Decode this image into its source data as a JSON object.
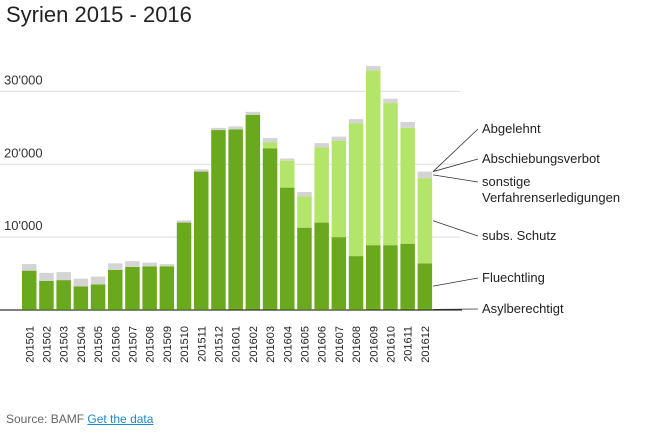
{
  "title": "Syrien 2015 - 2016",
  "source": {
    "label": "Source: BAMF",
    "link": "Get the data"
  },
  "chart_data": {
    "type": "bar",
    "stacked": true,
    "title": "Syrien 2015 - 2016",
    "xlabel": "",
    "ylabel": "",
    "ylim": [
      0,
      35000
    ],
    "yticks": [
      {
        "value": 10000,
        "label": "10'000"
      },
      {
        "value": 20000,
        "label": "20'000"
      },
      {
        "value": 30000,
        "label": "30'000"
      }
    ],
    "categories": [
      "201501",
      "201502",
      "201503",
      "201504",
      "201505",
      "201506",
      "201507",
      "201508",
      "201509",
      "201510",
      "201511",
      "201512",
      "201601",
      "201602",
      "201603",
      "201604",
      "201605",
      "201606",
      "201607",
      "201608",
      "201609",
      "201610",
      "201611",
      "201612"
    ],
    "series": [
      {
        "name": "Asylberechtigt",
        "color": "#3f6b0e",
        "values": [
          60,
          50,
          50,
          40,
          40,
          50,
          60,
          60,
          60,
          90,
          100,
          120,
          150,
          150,
          150,
          120,
          100,
          100,
          100,
          100,
          150,
          150,
          150,
          150
        ]
      },
      {
        "name": "Fluechtling",
        "color": "#6aa81e",
        "values": [
          5340,
          3950,
          4050,
          3210,
          3460,
          5450,
          5840,
          5940,
          5940,
          11910,
          18900,
          24580,
          24650,
          26650,
          22050,
          16680,
          11200,
          11900,
          9900,
          7300,
          8750,
          8750,
          8950,
          6250
        ]
      },
      {
        "name": "subs. Schutz",
        "color": "#b4e56b",
        "values": [
          0,
          0,
          0,
          0,
          0,
          0,
          0,
          0,
          0,
          0,
          0,
          0,
          0,
          0,
          800,
          3700,
          4300,
          10300,
          13200,
          18200,
          24000,
          19500,
          15900,
          11700
        ]
      },
      {
        "name": "sonstige Verfahrenserledigungen",
        "color": "#d4d4d4",
        "values": [
          900,
          1100,
          1100,
          1050,
          1100,
          900,
          800,
          500,
          300,
          300,
          300,
          300,
          400,
          400,
          600,
          300,
          600,
          600,
          600,
          600,
          600,
          600,
          800,
          900
        ]
      },
      {
        "name": "Abschiebungsverbot",
        "color": "#c0c0c0",
        "values": [
          0,
          0,
          0,
          0,
          0,
          0,
          0,
          0,
          0,
          0,
          0,
          0,
          0,
          0,
          0,
          0,
          0,
          0,
          0,
          0,
          0,
          0,
          0,
          0
        ]
      },
      {
        "name": "Abgelehnt",
        "color": "#c8c8c8",
        "values": [
          0,
          0,
          0,
          0,
          0,
          0,
          0,
          0,
          0,
          0,
          0,
          0,
          0,
          0,
          0,
          0,
          0,
          0,
          0,
          0,
          0,
          0,
          0,
          0
        ]
      }
    ],
    "legend": [
      "Abgelehnt",
      "Abschiebungsverbot",
      "sonstige Verfahrenserledigungen",
      "subs. Schutz",
      "Fluechtling",
      "Asylberechtigt"
    ]
  }
}
